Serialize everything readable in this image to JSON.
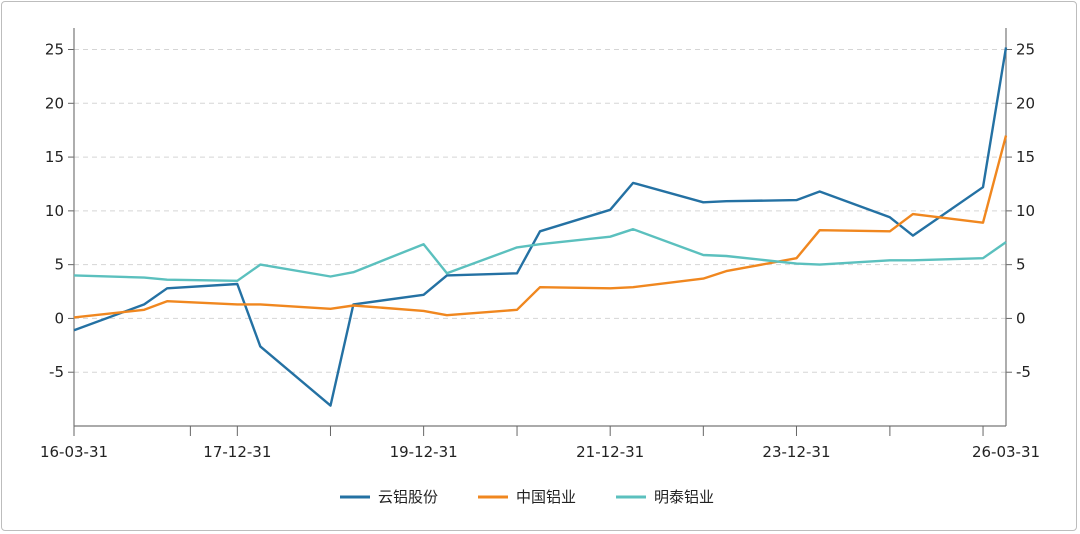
{
  "chart_data": {
    "type": "line",
    "title": "",
    "xlabel": "",
    "ylabel": "",
    "ylim": [
      -10,
      27
    ],
    "y_ticks": [
      -5,
      0,
      5,
      10,
      15,
      20,
      25
    ],
    "y_tick_labels": [
      "-5",
      "0",
      "5",
      "10",
      "15",
      "20",
      "25"
    ],
    "x_range": [
      "2016-03-31",
      "2026-03-31"
    ],
    "x_major_ticks": [
      "2016-03-31",
      "2017-06-30",
      "2017-12-31",
      "2018-12-31",
      "2019-12-31",
      "2020-12-31",
      "2021-12-31",
      "2022-12-31",
      "2023-12-31",
      "2024-12-31",
      "2025-12-31"
    ],
    "x_tick_labels": [
      {
        "date": "2016-03-31",
        "label": "16-03-31"
      },
      {
        "date": "2017-12-31",
        "label": "17-12-31"
      },
      {
        "date": "2019-12-31",
        "label": "19-12-31"
      },
      {
        "date": "2021-12-31",
        "label": "21-12-31"
      },
      {
        "date": "2023-12-31",
        "label": "23-12-31"
      },
      {
        "date": "2026-03-31",
        "label": "26-03-31"
      }
    ],
    "grid": "horizontal-dashed",
    "legend_position": "bottom",
    "series": [
      {
        "name": "云铝股份",
        "color": "#2471a3",
        "points": [
          [
            "2016-03-31",
            -1.1
          ],
          [
            "2016-12-31",
            1.3
          ],
          [
            "2017-03-31",
            2.8
          ],
          [
            "2017-12-31",
            3.2
          ],
          [
            "2018-03-31",
            -2.6
          ],
          [
            "2018-12-31",
            -8.1
          ],
          [
            "2019-03-31",
            1.3
          ],
          [
            "2019-12-31",
            2.2
          ],
          [
            "2020-03-31",
            4.0
          ],
          [
            "2020-12-31",
            4.2
          ],
          [
            "2021-03-31",
            8.1
          ],
          [
            "2021-12-31",
            10.1
          ],
          [
            "2022-03-31",
            12.6
          ],
          [
            "2022-12-31",
            10.8
          ],
          [
            "2023-03-31",
            10.9
          ],
          [
            "2023-12-31",
            11.0
          ],
          [
            "2024-03-31",
            11.8
          ],
          [
            "2024-12-31",
            9.4
          ],
          [
            "2025-03-31",
            7.7
          ],
          [
            "2025-12-31",
            12.2
          ],
          [
            "2026-03-31",
            25.2
          ]
        ]
      },
      {
        "name": "中国铝业",
        "color": "#f0871f",
        "points": [
          [
            "2016-03-31",
            0.1
          ],
          [
            "2016-12-31",
            0.8
          ],
          [
            "2017-03-31",
            1.6
          ],
          [
            "2017-12-31",
            1.3
          ],
          [
            "2018-03-31",
            1.3
          ],
          [
            "2018-12-31",
            0.9
          ],
          [
            "2019-03-31",
            1.2
          ],
          [
            "2019-12-31",
            0.7
          ],
          [
            "2020-03-31",
            0.3
          ],
          [
            "2020-12-31",
            0.8
          ],
          [
            "2021-03-31",
            2.9
          ],
          [
            "2021-12-31",
            2.8
          ],
          [
            "2022-03-31",
            2.9
          ],
          [
            "2022-12-31",
            3.7
          ],
          [
            "2023-03-31",
            4.4
          ],
          [
            "2023-12-31",
            5.6
          ],
          [
            "2024-03-31",
            8.2
          ],
          [
            "2024-12-31",
            8.1
          ],
          [
            "2025-03-31",
            9.7
          ],
          [
            "2025-12-31",
            8.9
          ],
          [
            "2026-03-31",
            17.0
          ]
        ]
      },
      {
        "name": "明泰铝业",
        "color": "#5bc0be",
        "points": [
          [
            "2016-03-31",
            4.0
          ],
          [
            "2016-12-31",
            3.8
          ],
          [
            "2017-03-31",
            3.6
          ],
          [
            "2017-12-31",
            3.5
          ],
          [
            "2018-03-31",
            5.0
          ],
          [
            "2018-12-31",
            3.9
          ],
          [
            "2019-03-31",
            4.3
          ],
          [
            "2019-12-31",
            6.9
          ],
          [
            "2020-03-31",
            4.2
          ],
          [
            "2020-12-31",
            6.6
          ],
          [
            "2021-03-31",
            6.9
          ],
          [
            "2021-12-31",
            7.6
          ],
          [
            "2022-03-31",
            8.3
          ],
          [
            "2022-12-31",
            5.9
          ],
          [
            "2023-03-31",
            5.8
          ],
          [
            "2023-12-31",
            5.1
          ],
          [
            "2024-03-31",
            5.0
          ],
          [
            "2024-12-31",
            5.4
          ],
          [
            "2025-03-31",
            5.4
          ],
          [
            "2025-12-31",
            5.6
          ],
          [
            "2026-03-31",
            7.1
          ]
        ]
      }
    ]
  }
}
